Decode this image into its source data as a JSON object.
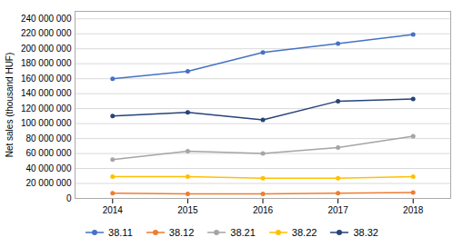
{
  "chart_data": {
    "type": "line",
    "x": [
      2014,
      2015,
      2016,
      2017,
      2018
    ],
    "xlim": [
      2013.5,
      2018.5
    ],
    "xticks": [
      2014,
      2015,
      2016,
      2017,
      2018
    ],
    "series": [
      {
        "name": "38.11",
        "color": "#4472C4",
        "marker": "circle",
        "values": [
          160000000,
          170000000,
          195000000,
          207000000,
          219000000
        ]
      },
      {
        "name": "38.12",
        "color": "#ED7D31",
        "marker": "circle",
        "values": [
          7000000,
          6000000,
          6000000,
          7000000,
          8000000
        ]
      },
      {
        "name": "38.21",
        "color": "#A5A5A5",
        "marker": "circle",
        "values": [
          52000000,
          63000000,
          60000000,
          68000000,
          83000000
        ]
      },
      {
        "name": "38.22",
        "color": "#FFC000",
        "marker": "circle",
        "values": [
          29000000,
          29000000,
          27000000,
          27000000,
          29000000
        ]
      },
      {
        "name": "38.32",
        "color": "#264478",
        "marker": "circle",
        "values": [
          110000000,
          115000000,
          105000000,
          130000000,
          133000000
        ]
      }
    ],
    "ylabel": "Net sales (thousand HUF)",
    "ylim": [
      0,
      250000000
    ],
    "yticks": [
      0,
      {
        "value": 20000000,
        "label": "20 000 000"
      },
      {
        "value": 40000000,
        "label": "40 000 000"
      },
      {
        "value": 60000000,
        "label": "60 000 000"
      },
      {
        "value": 80000000,
        "label": "80 000 000"
      },
      {
        "value": 100000000,
        "label": "100 000 000"
      },
      {
        "value": 120000000,
        "label": "120 000 000"
      },
      {
        "value": 140000000,
        "label": "140 000 000"
      },
      {
        "value": 160000000,
        "label": "160 000 000"
      },
      {
        "value": 180000000,
        "label": "180 000 000"
      },
      {
        "value": 200000000,
        "label": "200 000 000"
      },
      {
        "value": 220000000,
        "label": "220 000 000"
      },
      {
        "value": 240000000,
        "label": "240 000 000"
      }
    ],
    "grid": true,
    "legend": "bottom"
  }
}
